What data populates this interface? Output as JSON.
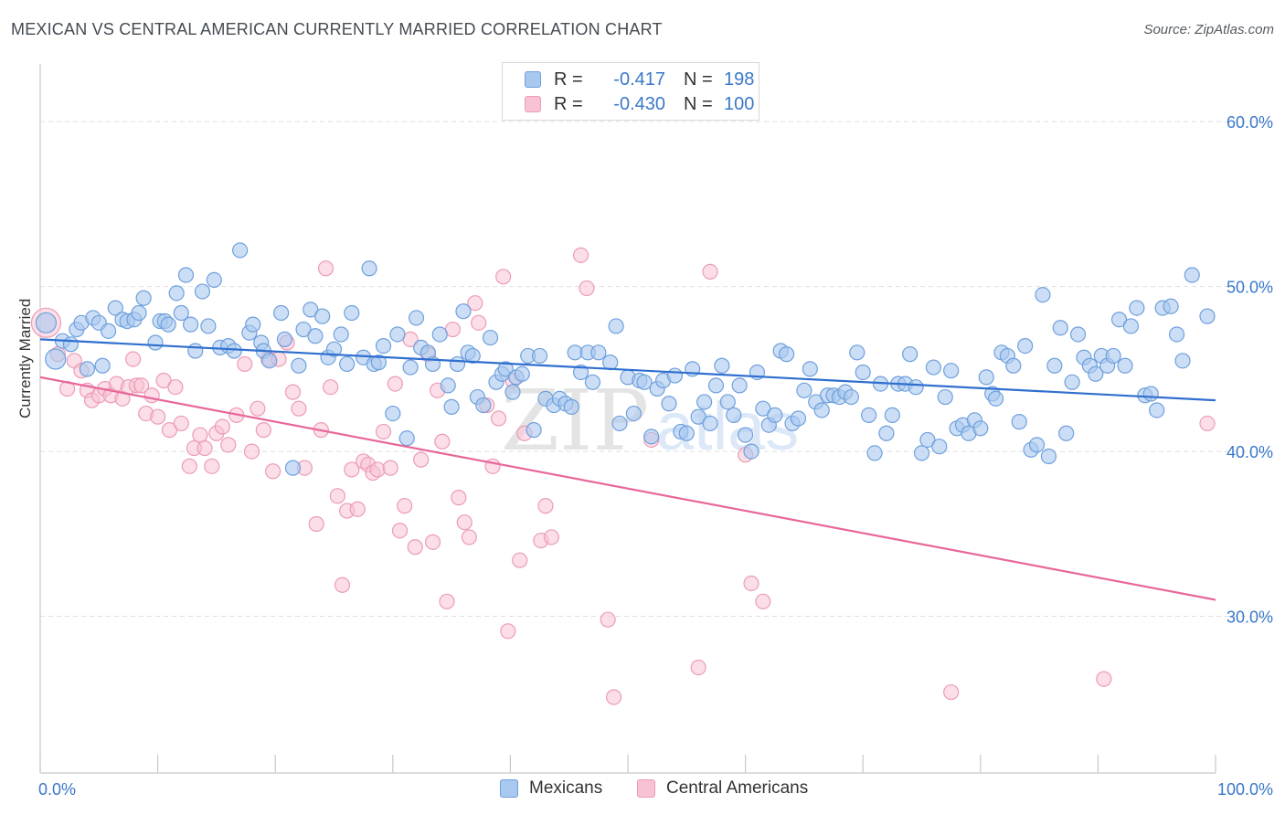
{
  "header": {
    "title": "MEXICAN VS CENTRAL AMERICAN CURRENTLY MARRIED CORRELATION CHART",
    "source": "Source: ZipAtlas.com"
  },
  "legend": {
    "rows": [
      {
        "r_label": "R =",
        "r_value": "-0.417",
        "n_label": "N =",
        "n_value": "198"
      },
      {
        "r_label": "R =",
        "r_value": "-0.430",
        "n_label": "N =",
        "n_value": "100"
      }
    ]
  },
  "bottom_legend": [
    "Mexicans",
    "Central Americans"
  ],
  "watermark": {
    "part1": "ZIP",
    "part2": "atlas"
  },
  "colors": {
    "blue_fill": "#a9c8f0",
    "blue_stroke": "#6fa0dc",
    "blue_line": "#2f6fcf",
    "pink_fill": "#f7c2d3",
    "pink_stroke": "#ec9cb6",
    "pink_line": "#e8679a",
    "axis_label": "#3a78c9"
  },
  "chart_data": {
    "type": "scatter",
    "title": "MEXICAN VS CENTRAL AMERICAN CURRENTLY MARRIED CORRELATION CHART",
    "xlabel": "",
    "ylabel": "Currently Married",
    "xlim": [
      0,
      100
    ],
    "ylim": [
      20.5,
      63.5
    ],
    "x_tick_labels": [
      "0.0%",
      "100.0%"
    ],
    "y_ticks": [
      30,
      40,
      50,
      60
    ],
    "y_tick_labels": [
      "30.0%",
      "40.0%",
      "50.0%",
      "60.0%"
    ],
    "grid": true,
    "series": [
      {
        "name": "Mexicans",
        "color": "blue",
        "R": -0.417,
        "N": 198,
        "trend": {
          "x0": 0,
          "y0": 46.8,
          "x1": 100,
          "y1": 43.1
        },
        "points": [
          [
            0.5,
            47.8
          ],
          [
            1.3,
            45.6
          ],
          [
            1.9,
            46.7
          ],
          [
            2.6,
            46.5
          ],
          [
            3.1,
            47.4
          ],
          [
            3.5,
            47.8
          ],
          [
            4.0,
            45.0
          ],
          [
            4.5,
            48.1
          ],
          [
            5.0,
            47.8
          ],
          [
            5.3,
            45.2
          ],
          [
            5.8,
            47.3
          ],
          [
            6.4,
            48.7
          ],
          [
            7.0,
            48.0
          ],
          [
            7.4,
            47.9
          ],
          [
            8.0,
            48.0
          ],
          [
            8.4,
            48.4
          ],
          [
            8.8,
            49.3
          ],
          [
            9.8,
            46.6
          ],
          [
            10.2,
            47.9
          ],
          [
            10.6,
            47.9
          ],
          [
            10.9,
            47.7
          ],
          [
            11.6,
            49.6
          ],
          [
            12.0,
            48.4
          ],
          [
            12.4,
            50.7
          ],
          [
            12.8,
            47.7
          ],
          [
            13.2,
            46.1
          ],
          [
            13.8,
            49.7
          ],
          [
            14.3,
            47.6
          ],
          [
            14.8,
            50.4
          ],
          [
            15.3,
            46.3
          ],
          [
            16.0,
            46.4
          ],
          [
            16.5,
            46.1
          ],
          [
            17.0,
            52.2
          ],
          [
            17.8,
            47.2
          ],
          [
            18.1,
            47.7
          ],
          [
            18.8,
            46.6
          ],
          [
            19.0,
            46.1
          ],
          [
            19.5,
            45.5
          ],
          [
            20.5,
            48.4
          ],
          [
            20.8,
            46.8
          ],
          [
            21.5,
            39.0
          ],
          [
            22.0,
            45.2
          ],
          [
            22.4,
            47.4
          ],
          [
            23.0,
            48.6
          ],
          [
            23.4,
            47.0
          ],
          [
            24.0,
            48.2
          ],
          [
            24.5,
            45.7
          ],
          [
            25.0,
            46.2
          ],
          [
            25.6,
            47.1
          ],
          [
            26.1,
            45.3
          ],
          [
            26.5,
            48.4
          ],
          [
            27.5,
            45.7
          ],
          [
            28.0,
            51.1
          ],
          [
            28.4,
            45.3
          ],
          [
            28.8,
            45.4
          ],
          [
            29.2,
            46.4
          ],
          [
            30.0,
            42.3
          ],
          [
            30.4,
            47.1
          ],
          [
            31.2,
            40.8
          ],
          [
            31.5,
            45.1
          ],
          [
            32.0,
            48.1
          ],
          [
            32.4,
            46.3
          ],
          [
            33.0,
            46.0
          ],
          [
            33.4,
            45.3
          ],
          [
            34.0,
            47.1
          ],
          [
            34.7,
            44.0
          ],
          [
            35.0,
            42.7
          ],
          [
            35.5,
            45.3
          ],
          [
            36.0,
            48.5
          ],
          [
            36.4,
            46.0
          ],
          [
            36.8,
            45.8
          ],
          [
            37.2,
            43.3
          ],
          [
            37.7,
            42.8
          ],
          [
            38.3,
            46.9
          ],
          [
            38.8,
            44.2
          ],
          [
            39.3,
            44.7
          ],
          [
            39.6,
            45.0
          ],
          [
            40.2,
            43.6
          ],
          [
            40.5,
            44.5
          ],
          [
            41.0,
            44.7
          ],
          [
            41.5,
            45.8
          ],
          [
            42.0,
            41.3
          ],
          [
            42.5,
            45.8
          ],
          [
            43.0,
            43.2
          ],
          [
            43.7,
            42.8
          ],
          [
            44.2,
            43.2
          ],
          [
            44.7,
            42.9
          ],
          [
            45.2,
            42.7
          ],
          [
            45.5,
            46.0
          ],
          [
            46.0,
            44.8
          ],
          [
            46.6,
            46.0
          ],
          [
            47.0,
            44.2
          ],
          [
            47.5,
            46.0
          ],
          [
            48.5,
            45.4
          ],
          [
            49.0,
            47.6
          ],
          [
            49.3,
            41.7
          ],
          [
            50.0,
            44.5
          ],
          [
            50.5,
            42.3
          ],
          [
            51.0,
            44.3
          ],
          [
            51.4,
            44.2
          ],
          [
            52.0,
            40.9
          ],
          [
            52.5,
            43.8
          ],
          [
            53.0,
            44.3
          ],
          [
            53.5,
            42.9
          ],
          [
            54.0,
            44.6
          ],
          [
            54.5,
            41.2
          ],
          [
            55.0,
            41.1
          ],
          [
            55.5,
            45.0
          ],
          [
            56.0,
            42.1
          ],
          [
            56.5,
            43.0
          ],
          [
            57.0,
            41.7
          ],
          [
            57.5,
            44.0
          ],
          [
            58.0,
            45.2
          ],
          [
            58.5,
            43.0
          ],
          [
            59.0,
            42.2
          ],
          [
            59.5,
            44.0
          ],
          [
            60.0,
            41.0
          ],
          [
            60.5,
            40.0
          ],
          [
            61.0,
            44.8
          ],
          [
            61.5,
            42.6
          ],
          [
            62.0,
            41.6
          ],
          [
            62.5,
            42.2
          ],
          [
            63.0,
            46.1
          ],
          [
            63.5,
            45.9
          ],
          [
            64.0,
            41.7
          ],
          [
            64.5,
            42.0
          ],
          [
            65.0,
            43.7
          ],
          [
            65.5,
            45.0
          ],
          [
            66.0,
            43.0
          ],
          [
            66.5,
            42.5
          ],
          [
            67.0,
            43.4
          ],
          [
            67.5,
            43.4
          ],
          [
            68.0,
            43.3
          ],
          [
            68.5,
            43.6
          ],
          [
            69.0,
            43.3
          ],
          [
            69.5,
            46.0
          ],
          [
            70.0,
            44.8
          ],
          [
            70.5,
            42.2
          ],
          [
            71.0,
            39.9
          ],
          [
            71.5,
            44.1
          ],
          [
            72.0,
            41.1
          ],
          [
            72.5,
            42.2
          ],
          [
            73.0,
            44.1
          ],
          [
            73.6,
            44.1
          ],
          [
            74.0,
            45.9
          ],
          [
            74.5,
            43.9
          ],
          [
            75.0,
            39.9
          ],
          [
            75.5,
            40.7
          ],
          [
            76.0,
            45.1
          ],
          [
            76.5,
            40.3
          ],
          [
            77.0,
            43.3
          ],
          [
            77.5,
            44.9
          ],
          [
            78.0,
            41.4
          ],
          [
            78.5,
            41.6
          ],
          [
            79.0,
            41.1
          ],
          [
            79.5,
            41.9
          ],
          [
            80.0,
            41.4
          ],
          [
            80.5,
            44.5
          ],
          [
            81.0,
            43.5
          ],
          [
            81.3,
            43.2
          ],
          [
            81.8,
            46.0
          ],
          [
            82.3,
            45.8
          ],
          [
            82.8,
            45.2
          ],
          [
            83.3,
            41.8
          ],
          [
            83.8,
            46.4
          ],
          [
            84.3,
            40.1
          ],
          [
            84.8,
            40.4
          ],
          [
            85.3,
            49.5
          ],
          [
            85.8,
            39.7
          ],
          [
            86.3,
            45.2
          ],
          [
            86.8,
            47.5
          ],
          [
            87.3,
            41.1
          ],
          [
            87.8,
            44.2
          ],
          [
            88.3,
            47.1
          ],
          [
            88.8,
            45.7
          ],
          [
            89.3,
            45.2
          ],
          [
            89.8,
            44.7
          ],
          [
            90.3,
            45.8
          ],
          [
            90.8,
            45.2
          ],
          [
            91.3,
            45.8
          ],
          [
            91.8,
            48.0
          ],
          [
            92.3,
            45.2
          ],
          [
            92.8,
            47.6
          ],
          [
            93.3,
            48.7
          ],
          [
            94.0,
            43.4
          ],
          [
            94.5,
            43.5
          ],
          [
            95.0,
            42.5
          ],
          [
            95.5,
            48.7
          ],
          [
            96.2,
            48.8
          ],
          [
            96.7,
            47.1
          ],
          [
            97.2,
            45.5
          ],
          [
            98.0,
            50.7
          ],
          [
            99.3,
            48.2
          ]
        ]
      },
      {
        "name": "Central Americans",
        "color": "pink",
        "R": -0.43,
        "N": 100,
        "trend": {
          "x0": 0,
          "y0": 44.5,
          "x1": 100,
          "y1": 31.0
        },
        "points": [
          [
            0.5,
            47.8
          ],
          [
            1.5,
            45.9
          ],
          [
            2.3,
            43.8
          ],
          [
            2.9,
            45.5
          ],
          [
            3.5,
            44.9
          ],
          [
            4.0,
            43.7
          ],
          [
            4.4,
            43.1
          ],
          [
            5.0,
            43.4
          ],
          [
            5.5,
            43.8
          ],
          [
            6.0,
            43.4
          ],
          [
            6.5,
            44.1
          ],
          [
            7.0,
            43.2
          ],
          [
            7.5,
            43.9
          ],
          [
            7.9,
            45.6
          ],
          [
            8.2,
            44.0
          ],
          [
            8.6,
            44.0
          ],
          [
            9.0,
            42.3
          ],
          [
            9.5,
            43.4
          ],
          [
            10.0,
            42.1
          ],
          [
            10.5,
            44.3
          ],
          [
            11.0,
            41.3
          ],
          [
            11.5,
            43.9
          ],
          [
            12.0,
            41.7
          ],
          [
            12.7,
            39.1
          ],
          [
            13.1,
            40.2
          ],
          [
            13.6,
            41.0
          ],
          [
            14.0,
            40.2
          ],
          [
            14.6,
            39.1
          ],
          [
            15.0,
            41.1
          ],
          [
            15.5,
            41.5
          ],
          [
            16.0,
            40.4
          ],
          [
            16.7,
            42.2
          ],
          [
            17.4,
            45.3
          ],
          [
            18.0,
            40.0
          ],
          [
            18.5,
            42.6
          ],
          [
            19.0,
            41.3
          ],
          [
            19.4,
            45.6
          ],
          [
            19.8,
            38.8
          ],
          [
            20.3,
            45.6
          ],
          [
            21.0,
            46.6
          ],
          [
            21.5,
            43.6
          ],
          [
            22.0,
            42.6
          ],
          [
            22.5,
            39.0
          ],
          [
            23.5,
            35.6
          ],
          [
            23.9,
            41.3
          ],
          [
            24.3,
            51.1
          ],
          [
            24.7,
            43.9
          ],
          [
            25.3,
            37.3
          ],
          [
            25.7,
            31.9
          ],
          [
            26.1,
            36.4
          ],
          [
            26.5,
            38.9
          ],
          [
            27.0,
            36.5
          ],
          [
            27.5,
            39.4
          ],
          [
            27.9,
            39.2
          ],
          [
            28.3,
            38.7
          ],
          [
            28.7,
            38.9
          ],
          [
            29.2,
            41.2
          ],
          [
            29.8,
            39.0
          ],
          [
            30.2,
            44.1
          ],
          [
            30.6,
            35.2
          ],
          [
            31.0,
            36.7
          ],
          [
            31.5,
            46.8
          ],
          [
            31.9,
            34.2
          ],
          [
            32.4,
            39.5
          ],
          [
            33.0,
            45.9
          ],
          [
            33.4,
            34.5
          ],
          [
            33.8,
            43.7
          ],
          [
            34.2,
            40.6
          ],
          [
            34.6,
            30.9
          ],
          [
            35.1,
            47.4
          ],
          [
            35.6,
            37.2
          ],
          [
            36.1,
            35.7
          ],
          [
            36.5,
            34.8
          ],
          [
            37.0,
            49.0
          ],
          [
            37.3,
            47.8
          ],
          [
            38.0,
            42.8
          ],
          [
            38.5,
            39.1
          ],
          [
            39.0,
            42.0
          ],
          [
            39.4,
            50.6
          ],
          [
            39.8,
            29.1
          ],
          [
            40.2,
            44.3
          ],
          [
            40.8,
            33.4
          ],
          [
            41.2,
            41.1
          ],
          [
            42.6,
            34.6
          ],
          [
            43.0,
            36.7
          ],
          [
            43.5,
            34.8
          ],
          [
            46.0,
            51.9
          ],
          [
            46.5,
            49.9
          ],
          [
            48.3,
            29.8
          ],
          [
            48.8,
            25.1
          ],
          [
            52.0,
            40.7
          ],
          [
            56.0,
            26.9
          ],
          [
            57.0,
            50.9
          ],
          [
            60.0,
            39.8
          ],
          [
            60.5,
            32.0
          ],
          [
            61.5,
            30.9
          ],
          [
            77.5,
            25.4
          ],
          [
            90.5,
            26.2
          ],
          [
            99.3,
            41.7
          ]
        ]
      }
    ]
  }
}
